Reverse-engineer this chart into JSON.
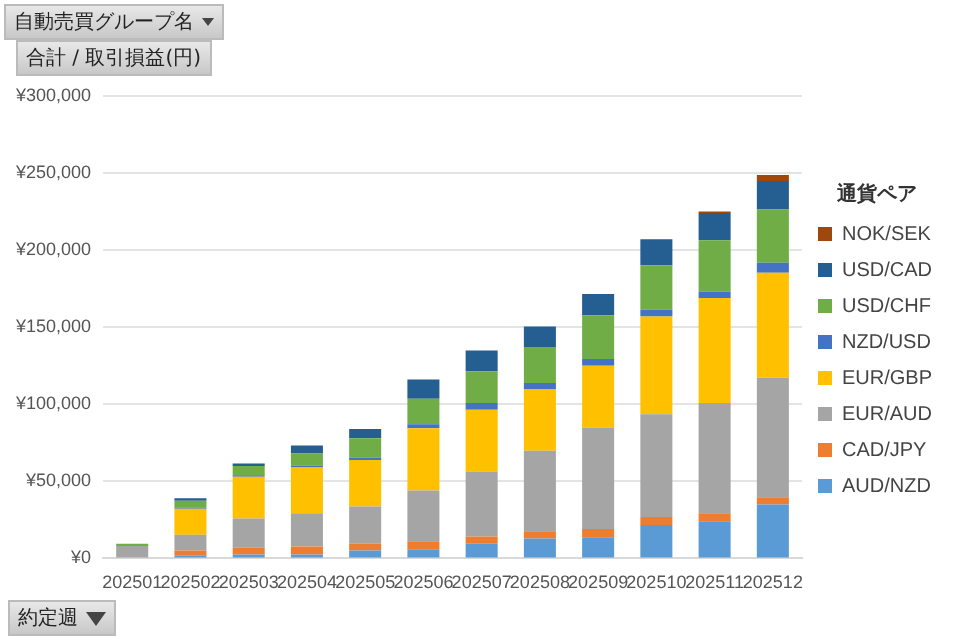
{
  "chart_data": {
    "type": "bar",
    "stacked": true,
    "legend": "right",
    "legend_title": "通貨ペア",
    "grid": "y",
    "annotations": [
      "自動売買グループ名",
      "合計 / 取引損益(円)",
      "約定週"
    ],
    "categories": [
      "202501",
      "202502",
      "202503",
      "202504",
      "202505",
      "202506",
      "202507",
      "202508",
      "202509",
      "202510",
      "202511",
      "202512"
    ],
    "ylim": [
      0,
      300000
    ],
    "yticks": [
      {
        "value": 0,
        "label": "¥0"
      },
      {
        "value": 50000,
        "label": "¥50,000"
      },
      {
        "value": 100000,
        "label": "¥100,000"
      },
      {
        "value": 150000,
        "label": "¥150,000"
      },
      {
        "value": 200000,
        "label": "¥200,000"
      },
      {
        "value": 250000,
        "label": "¥250,000"
      },
      {
        "value": 300000,
        "label": "¥300,000"
      }
    ],
    "series": [
      {
        "name": "AUD/NZD",
        "color": "#5b9bd5",
        "values": [
          null,
          1700,
          2600,
          2600,
          5200,
          6000,
          9500,
          12900,
          13800,
          21600,
          24100,
          34900
        ]
      },
      {
        "name": "CAD/JPY",
        "color": "#ed7d31",
        "values": [
          null,
          3400,
          4300,
          5200,
          4300,
          5200,
          4700,
          4700,
          5200,
          5200,
          5200,
          4700
        ]
      },
      {
        "name": "EUR/AUD",
        "color": "#a5a5a5",
        "values": [
          8000,
          10300,
          19000,
          21500,
          24100,
          32800,
          42200,
          52200,
          65900,
          66800,
          71500,
          77600
        ]
      },
      {
        "name": "EUR/GBP",
        "color": "#ffc000",
        "values": [
          null,
          16800,
          27100,
          29700,
          30200,
          40500,
          40100,
          39700,
          40100,
          63400,
          68100,
          68100
        ]
      },
      {
        "name": "NZD/USD",
        "color": "#4472c4",
        "values": [
          null,
          900,
          900,
          1300,
          1700,
          2600,
          4300,
          4300,
          4300,
          4300,
          4300,
          6500
        ]
      },
      {
        "name": "USD/CHF",
        "color": "#70ad47",
        "values": [
          1500,
          4300,
          6000,
          7800,
          12500,
          16400,
          20700,
          23300,
          28400,
          28900,
          33200,
          34500
        ]
      },
      {
        "name": "USD/CAD",
        "color": "#255e91",
        "values": [
          null,
          1700,
          1700,
          5200,
          6000,
          12500,
          13400,
          13400,
          13800,
          16800,
          17700,
          18500
        ]
      },
      {
        "name": "NOK/SEK",
        "color": "#9e480e",
        "values": [
          null,
          null,
          null,
          null,
          null,
          null,
          null,
          null,
          null,
          null,
          900,
          3900
        ]
      }
    ]
  }
}
